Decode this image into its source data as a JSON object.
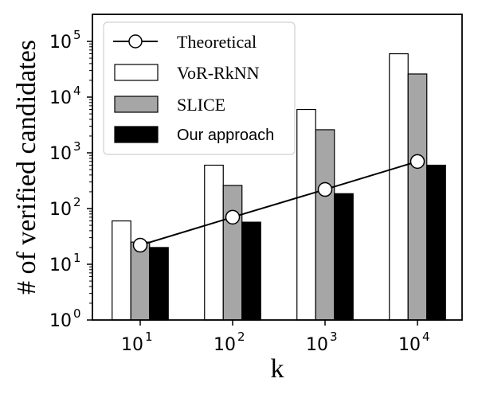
{
  "chart_data": {
    "type": "bar",
    "title": "",
    "xlabel": "k",
    "ylabel": "# of verified candidates",
    "yscale": "log",
    "ylim": [
      1,
      200000
    ],
    "yticks": [
      {
        "base": "10",
        "exp": "0",
        "value": 1
      },
      {
        "base": "10",
        "exp": "1",
        "value": 10
      },
      {
        "base": "10",
        "exp": "2",
        "value": 100
      },
      {
        "base": "10",
        "exp": "3",
        "value": 1000
      },
      {
        "base": "10",
        "exp": "4",
        "value": 10000
      },
      {
        "base": "10",
        "exp": "5",
        "value": 100000
      }
    ],
    "categories": [
      {
        "base": "10",
        "exp": "1"
      },
      {
        "base": "10",
        "exp": "2"
      },
      {
        "base": "10",
        "exp": "3"
      },
      {
        "base": "10",
        "exp": "4"
      }
    ],
    "series": [
      {
        "name": "VoR-RkNN",
        "type": "bar",
        "fill": "#ffffff",
        "values": [
          60,
          600,
          6000,
          60000
        ]
      },
      {
        "name": "SLICE",
        "type": "bar",
        "fill": "#a6a6a6",
        "values": [
          25,
          260,
          2600,
          26000
        ]
      },
      {
        "name": "Our approach",
        "type": "bar",
        "fill": "#000000",
        "values": [
          20,
          57,
          185,
          600
        ]
      },
      {
        "name": "Theoretical",
        "type": "line",
        "marker": "circle",
        "values": [
          22,
          70,
          220,
          700
        ]
      }
    ],
    "legend": {
      "position": "top-left",
      "entries": [
        {
          "label": "Theoretical",
          "style": "line"
        },
        {
          "label": "VoR-RkNN",
          "style": "bar"
        },
        {
          "label": "SLICE",
          "style": "bar"
        },
        {
          "label": "Our approach",
          "style": "bar"
        }
      ]
    },
    "grid": false
  }
}
